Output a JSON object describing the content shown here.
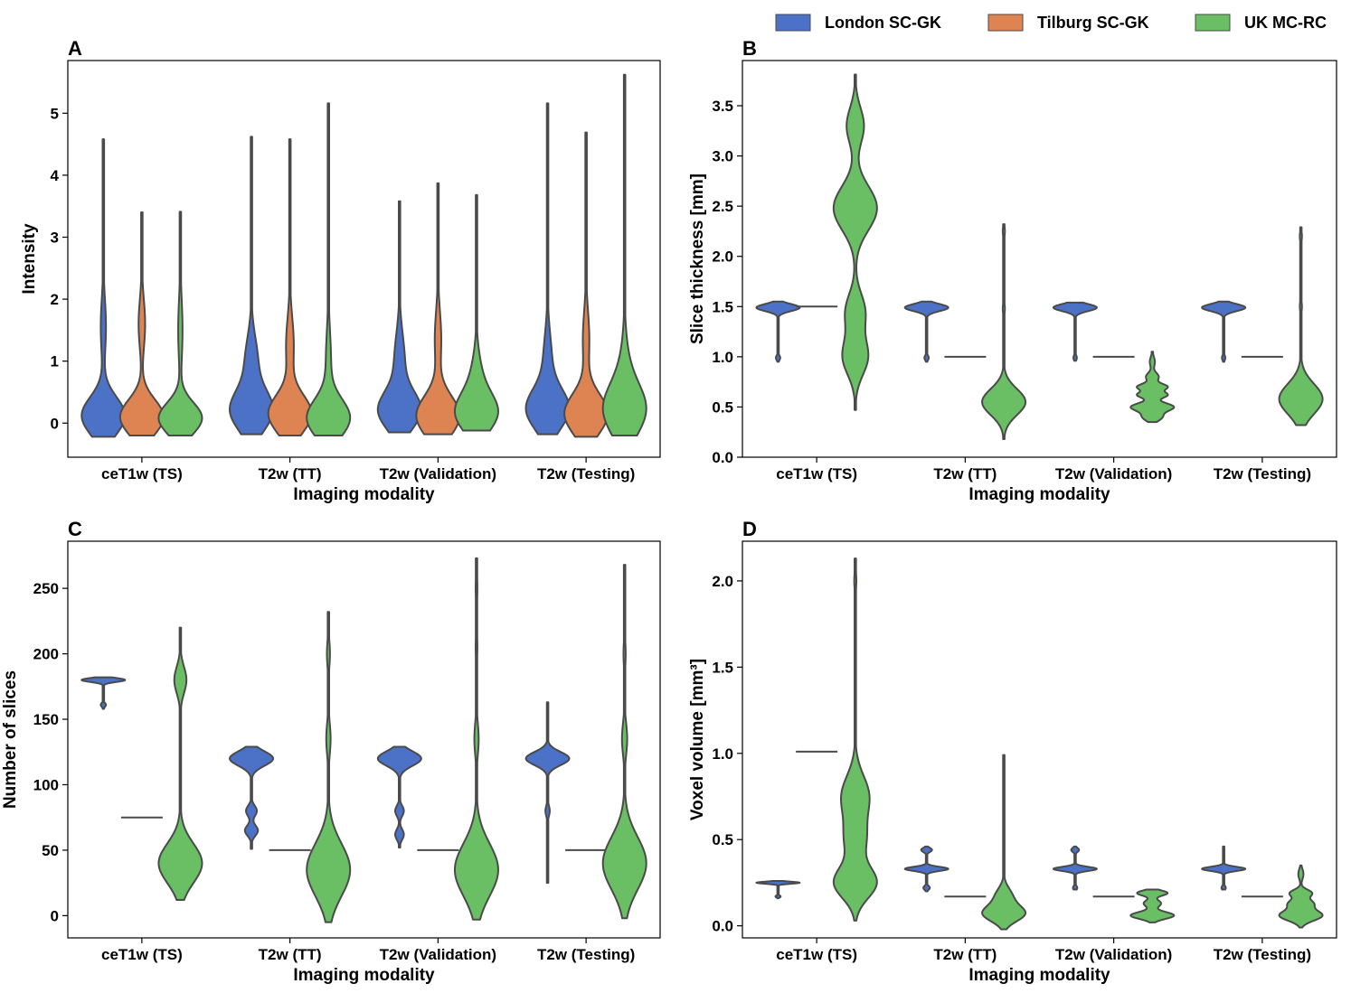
{
  "legend": {
    "entries": [
      {
        "name": "London SC-GK",
        "color": "#4c72c8"
      },
      {
        "name": "Tilburg SC-GK",
        "color": "#dd8452"
      },
      {
        "name": "UK MC-RC",
        "color": "#6abf65"
      }
    ]
  },
  "chart_data": [
    {
      "panel": "A",
      "type": "violin",
      "xlabel": "Imaging modality",
      "ylabel": "Intensity",
      "ylim": [
        -0.55,
        5.85
      ],
      "yticks": [
        0,
        1,
        2,
        3,
        4,
        5
      ],
      "categories": [
        "ceT1w (TS)",
        "T2w (TT)",
        "T2w (Validation)",
        "T2w (Testing)"
      ],
      "series": [
        {
          "name": "London SC-GK",
          "violins": [
            {
              "min": -0.22,
              "max": 4.58,
              "peaks": [
                [
                  0.12,
                  1.0,
                  0.3
                ],
                [
                  1.55,
                  0.12,
                  0.45
                ]
              ]
            },
            {
              "min": -0.18,
              "max": 4.62,
              "peaks": [
                [
                  0.2,
                  1.0,
                  0.32
                ],
                [
                  1.0,
                  0.3,
                  0.4
                ]
              ]
            },
            {
              "min": -0.15,
              "max": 3.58,
              "peaks": [
                [
                  0.2,
                  1.0,
                  0.3
                ],
                [
                  1.0,
                  0.25,
                  0.45
                ]
              ]
            },
            {
              "min": -0.18,
              "max": 5.16,
              "peaks": [
                [
                  0.22,
                  1.0,
                  0.32
                ],
                [
                  1.0,
                  0.2,
                  0.45
                ]
              ]
            }
          ]
        },
        {
          "name": "Tilburg SC-GK",
          "violins": [
            {
              "min": -0.2,
              "max": 3.4,
              "peaks": [
                [
                  0.1,
                  1.0,
                  0.28
                ],
                [
                  1.6,
                  0.15,
                  0.4
                ]
              ]
            },
            {
              "min": -0.2,
              "max": 4.58,
              "peaks": [
                [
                  0.15,
                  1.0,
                  0.3
                ],
                [
                  1.25,
                  0.18,
                  0.45
                ]
              ]
            },
            {
              "min": -0.18,
              "max": 3.87,
              "peaks": [
                [
                  0.12,
                  1.0,
                  0.32
                ],
                [
                  1.35,
                  0.15,
                  0.45
                ]
              ]
            },
            {
              "min": -0.22,
              "max": 4.69,
              "peaks": [
                [
                  0.15,
                  1.0,
                  0.32
                ],
                [
                  1.35,
                  0.15,
                  0.45
                ]
              ]
            }
          ]
        },
        {
          "name": "UK MC-RC",
          "violins": [
            {
              "min": -0.2,
              "max": 3.41,
              "peaks": [
                [
                  0.08,
                  1.0,
                  0.25
                ],
                [
                  1.5,
                  0.1,
                  0.5
                ]
              ]
            },
            {
              "min": -0.2,
              "max": 5.16,
              "peaks": [
                [
                  0.08,
                  1.0,
                  0.3
                ],
                [
                  1.0,
                  0.12,
                  0.5
                ]
              ]
            },
            {
              "min": -0.12,
              "max": 3.68,
              "peaks": [
                [
                  0.15,
                  1.0,
                  0.3
                ],
                [
                  0.65,
                  0.3,
                  0.4
                ]
              ]
            },
            {
              "min": -0.2,
              "max": 5.62,
              "peaks": [
                [
                  0.2,
                  1.0,
                  0.4
                ],
                [
                  0.8,
                  0.2,
                  0.5
                ]
              ]
            }
          ]
        }
      ]
    },
    {
      "panel": "B",
      "type": "violin",
      "xlabel": "Imaging modality",
      "ylabel": "Slice thickness [mm]",
      "ylim": [
        0.0,
        3.95
      ],
      "yticks": [
        0.0,
        0.5,
        1.0,
        1.5,
        2.0,
        2.5,
        3.0,
        3.5
      ],
      "categories": [
        "ceT1w (TS)",
        "T2w (TT)",
        "T2w (Validation)",
        "T2w (Testing)"
      ],
      "series": [
        {
          "name": "London SC-GK",
          "violins": [
            {
              "min": 0.95,
              "max": 1.55,
              "peaks": [
                [
                  1.49,
                  1.0,
                  0.035
                ],
                [
                  0.99,
                  0.1,
                  0.025
                ]
              ]
            },
            {
              "min": 0.95,
              "max": 1.55,
              "peaks": [
                [
                  1.49,
                  1.0,
                  0.035
                ],
                [
                  0.99,
                  0.1,
                  0.025
                ]
              ]
            },
            {
              "min": 0.96,
              "max": 1.54,
              "peaks": [
                [
                  1.49,
                  1.0,
                  0.035
                ],
                [
                  0.99,
                  0.08,
                  0.025
                ]
              ]
            },
            {
              "min": 0.95,
              "max": 1.55,
              "peaks": [
                [
                  1.49,
                  1.0,
                  0.035
                ],
                [
                  0.99,
                  0.08,
                  0.025
                ]
              ]
            }
          ]
        },
        {
          "name": "Tilburg SC-GK",
          "violins": [
            {
              "constant": 1.5
            },
            {
              "constant": 1.0
            },
            {
              "constant": 1.0
            },
            {
              "constant": 1.0
            }
          ]
        },
        {
          "name": "UK MC-RC",
          "violins": [
            {
              "min": 0.47,
              "max": 3.81,
              "peaks": [
                [
                  2.48,
                  1.0,
                  0.22
                ],
                [
                  1.0,
                  0.58,
                  0.18
                ],
                [
                  1.45,
                  0.45,
                  0.18
                ],
                [
                  3.3,
                  0.4,
                  0.18
                ]
              ]
            },
            {
              "min": 0.18,
              "max": 2.32,
              "peaks": [
                [
                  0.55,
                  1.0,
                  0.13
                ],
                [
                  1.48,
                  0.05,
                  0.05
                ],
                [
                  2.25,
                  0.05,
                  0.05
                ]
              ]
            },
            {
              "min": 0.35,
              "max": 1.05,
              "peaks": [
                [
                  0.5,
                  1.0,
                  0.04
                ],
                [
                  0.62,
                  0.7,
                  0.03
                ],
                [
                  0.7,
                  0.7,
                  0.03
                ],
                [
                  0.4,
                  0.45,
                  0.04
                ],
                [
                  0.8,
                  0.3,
                  0.04
                ],
                [
                  0.95,
                  0.12,
                  0.05
                ]
              ]
            },
            {
              "min": 0.32,
              "max": 2.29,
              "peaks": [
                [
                  0.58,
                  1.0,
                  0.15
                ],
                [
                  1.5,
                  0.05,
                  0.05
                ],
                [
                  2.2,
                  0.05,
                  0.05
                ]
              ]
            }
          ]
        }
      ]
    },
    {
      "panel": "C",
      "type": "violin",
      "xlabel": "Imaging modality",
      "ylabel": "Number of slices",
      "ylim": [
        -17,
        286
      ],
      "yticks": [
        0,
        50,
        100,
        150,
        200,
        250
      ],
      "categories": [
        "ceT1w (TS)",
        "T2w (TT)",
        "T2w (Validation)",
        "T2w (Testing)"
      ],
      "series": [
        {
          "name": "London SC-GK",
          "violins": [
            {
              "min": 158,
              "max": 182,
              "peaks": [
                [
                  180,
                  1.0,
                  1.5
                ],
                [
                  161,
                  0.12,
                  1.5
                ]
              ]
            },
            {
              "min": 51,
              "max": 129,
              "peaks": [
                [
                  120,
                  1.0,
                  5.5
                ],
                [
                  80,
                  0.25,
                  4
                ],
                [
                  65,
                  0.3,
                  4
                ]
              ]
            },
            {
              "min": 52,
              "max": 129,
              "peaks": [
                [
                  120,
                  1.0,
                  5.5
                ],
                [
                  80,
                  0.2,
                  4
                ],
                [
                  62,
                  0.2,
                  4
                ]
              ]
            },
            {
              "min": 25,
              "max": 163,
              "peaks": [
                [
                  120,
                  1.0,
                  5
                ],
                [
                  80,
                  0.1,
                  4
                ]
              ]
            }
          ]
        },
        {
          "name": "Tilburg SC-GK",
          "violins": [
            {
              "constant": 75
            },
            {
              "constant": 50
            },
            {
              "constant": 50
            },
            {
              "constant": 50
            }
          ]
        },
        {
          "name": "UK MC-RC",
          "violins": [
            {
              "min": 12,
              "max": 220,
              "peaks": [
                [
                  40,
                  1.0,
                  15
                ],
                [
                  180,
                  0.28,
                  10
                ]
              ]
            },
            {
              "min": -5,
              "max": 232,
              "peaks": [
                [
                  35,
                  1.0,
                  20
                ],
                [
                  135,
                  0.1,
                  12
                ],
                [
                  200,
                  0.07,
                  10
                ]
              ]
            },
            {
              "min": -3,
              "max": 273,
              "peaks": [
                [
                  35,
                  1.0,
                  20
                ],
                [
                  135,
                  0.1,
                  12
                ],
                [
                  205,
                  0.04,
                  10
                ],
                [
                  250,
                  0.04,
                  10
                ]
              ]
            },
            {
              "min": -2,
              "max": 268,
              "peaks": [
                [
                  40,
                  1.0,
                  20
                ],
                [
                  135,
                  0.12,
                  12
                ],
                [
                  200,
                  0.05,
                  10
                ]
              ]
            }
          ]
        }
      ]
    },
    {
      "panel": "D",
      "type": "violin",
      "xlabel": "Imaging modality",
      "ylabel": "Voxel volume [mm³]",
      "ylim": [
        -0.07,
        2.23
      ],
      "yticks": [
        0.0,
        0.5,
        1.0,
        1.5,
        2.0
      ],
      "categories": [
        "ceT1w (TS)",
        "T2w (TT)",
        "T2w (Validation)",
        "T2w (Testing)"
      ],
      "series": [
        {
          "name": "London SC-GK",
          "violins": [
            {
              "min": 0.16,
              "max": 0.26,
              "peaks": [
                [
                  0.25,
                  1.0,
                  0.006
                ],
                [
                  0.17,
                  0.12,
                  0.006
                ]
              ]
            },
            {
              "min": 0.2,
              "max": 0.46,
              "peaks": [
                [
                  0.33,
                  1.0,
                  0.012
                ],
                [
                  0.44,
                  0.25,
                  0.012
                ],
                [
                  0.22,
                  0.15,
                  0.012
                ]
              ]
            },
            {
              "min": 0.21,
              "max": 0.46,
              "peaks": [
                [
                  0.33,
                  1.0,
                  0.012
                ],
                [
                  0.44,
                  0.18,
                  0.012
                ],
                [
                  0.22,
                  0.1,
                  0.012
                ]
              ]
            },
            {
              "min": 0.21,
              "max": 0.46,
              "peaks": [
                [
                  0.33,
                  1.0,
                  0.012
                ],
                [
                  0.22,
                  0.1,
                  0.012
                ]
              ]
            }
          ]
        },
        {
          "name": "Tilburg SC-GK",
          "violins": [
            {
              "constant": 1.01
            },
            {
              "constant": 0.17
            },
            {
              "constant": 0.17
            },
            {
              "constant": 0.17
            }
          ]
        },
        {
          "name": "UK MC-RC",
          "violins": [
            {
              "min": 0.03,
              "max": 2.13,
              "peaks": [
                [
                  0.25,
                  1.0,
                  0.09
                ],
                [
                  0.75,
                  0.65,
                  0.12
                ],
                [
                  0.5,
                  0.45,
                  0.1
                ],
                [
                  2.0,
                  0.05,
                  0.05
                ]
              ]
            },
            {
              "min": -0.02,
              "max": 0.99,
              "peaks": [
                [
                  0.07,
                  1.0,
                  0.045
                ],
                [
                  0.17,
                  0.4,
                  0.05
                ],
                [
                  0.45,
                  0.03,
                  0.05
                ]
              ]
            },
            {
              "min": 0.02,
              "max": 0.21,
              "peaks": [
                [
                  0.06,
                  1.0,
                  0.02
                ],
                [
                  0.13,
                  0.4,
                  0.02
                ],
                [
                  0.19,
                  0.7,
                  0.015
                ]
              ]
            },
            {
              "min": -0.01,
              "max": 0.35,
              "peaks": [
                [
                  0.06,
                  1.0,
                  0.03
                ],
                [
                  0.13,
                  0.55,
                  0.025
                ],
                [
                  0.19,
                  0.5,
                  0.02
                ],
                [
                  0.3,
                  0.12,
                  0.03
                ]
              ]
            }
          ]
        }
      ]
    }
  ]
}
